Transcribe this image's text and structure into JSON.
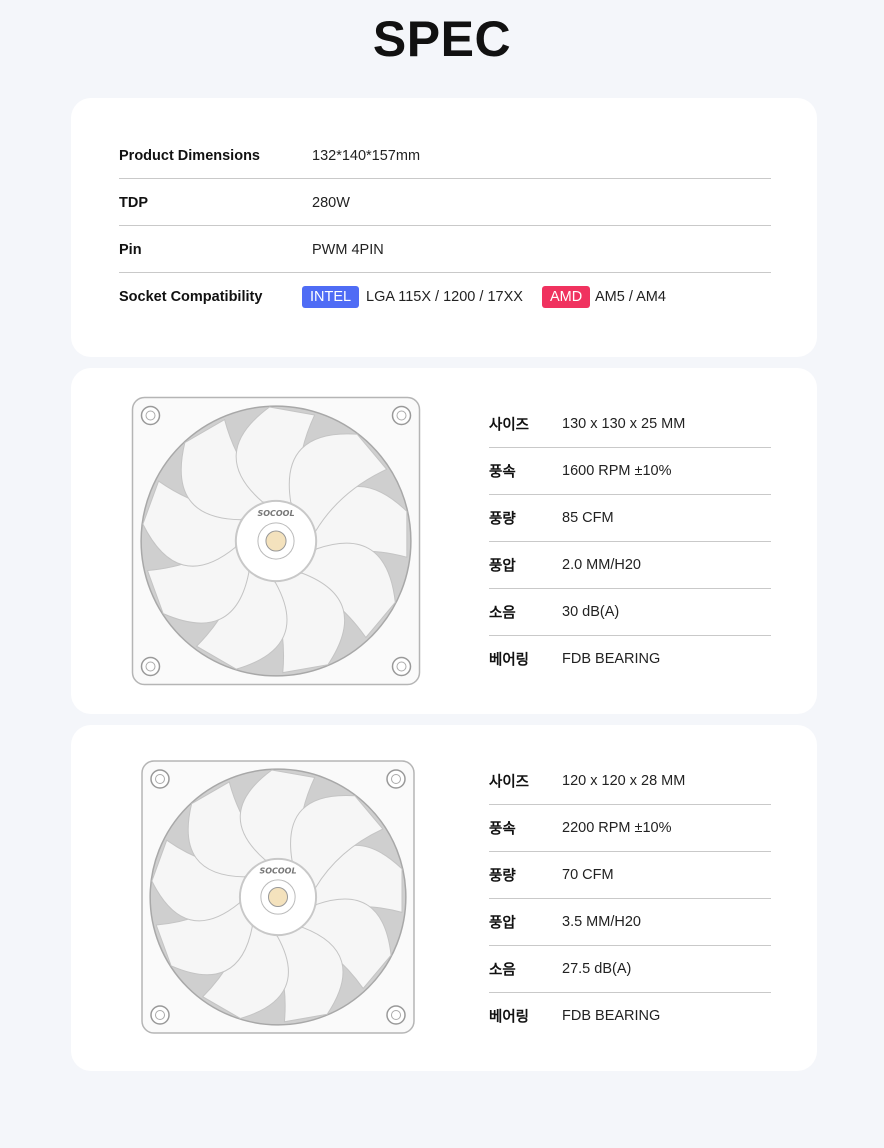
{
  "title": "SPEC",
  "specs": {
    "rows": [
      {
        "label": "Product Dimensions",
        "value": "132*140*157mm"
      },
      {
        "label": "TDP",
        "value": "280W"
      },
      {
        "label": "Pin",
        "value": "PWM 4PIN"
      }
    ],
    "socket": {
      "label": "Socket Compatibility",
      "intel": {
        "badge": "INTEL",
        "value": "LGA 115X / 1200 / 17XX"
      },
      "amd": {
        "badge": "AMD",
        "value": "AM5 / AM4"
      }
    }
  },
  "fans": [
    {
      "brand": "SOCOOL",
      "rows": [
        {
          "label": "사이즈",
          "value": "130 x 130 x 25 MM"
        },
        {
          "label": "풍속",
          "value": "1600 RPM ±10%"
        },
        {
          "label": "풍량",
          "value": "85 CFM"
        },
        {
          "label": "풍압",
          "value": "2.0 MM/H20"
        },
        {
          "label": "소음",
          "value": "30 dB(A)"
        },
        {
          "label": "베어링",
          "value": "FDB BEARING"
        }
      ]
    },
    {
      "brand": "SOCOOL",
      "rows": [
        {
          "label": "사이즈",
          "value": "120 x 120 x 28 MM"
        },
        {
          "label": "풍속",
          "value": "2200 RPM ±10%"
        },
        {
          "label": "풍량",
          "value": "70 CFM"
        },
        {
          "label": "풍압",
          "value": "3.5 MM/H20"
        },
        {
          "label": "소음",
          "value": "27.5 dB(A)"
        },
        {
          "label": "베어링",
          "value": "FDB BEARING"
        }
      ]
    }
  ]
}
